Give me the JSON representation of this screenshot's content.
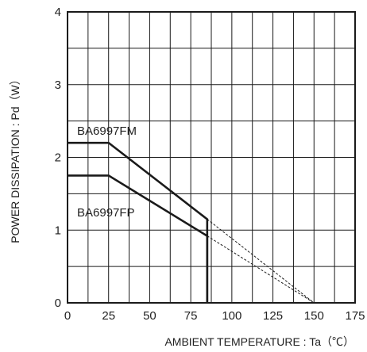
{
  "chart_data": {
    "type": "line",
    "xlabel": "AMBIENT TEMPERATURE : Ta（℃）",
    "ylabel": "POWER DISSIPATION : Pd（W）",
    "xlim": [
      0,
      175
    ],
    "ylim": [
      0,
      4
    ],
    "x_ticks": [
      "0",
      "25",
      "50",
      "75",
      "100",
      "125",
      "150",
      "175"
    ],
    "y_ticks": [
      "0",
      "1",
      "2",
      "3",
      "4"
    ],
    "grid": "on",
    "series": [
      {
        "name": "BA6997FM",
        "x": [
          0,
          25,
          85,
          85
        ],
        "y": [
          2.2,
          2.2,
          1.15,
          0
        ],
        "extrapolation": {
          "x": [
            85,
            150
          ],
          "y": [
            1.15,
            0
          ],
          "style": "dashed"
        }
      },
      {
        "name": "BA6997FP",
        "x": [
          0,
          25,
          85,
          85
        ],
        "y": [
          1.75,
          1.75,
          0.92,
          0
        ],
        "extrapolation": {
          "x": [
            85,
            150
          ],
          "y": [
            0.92,
            0
          ],
          "style": "dashed"
        }
      }
    ],
    "colors": {
      "line": "#1a1a1a",
      "grid": "#1a1a1a"
    }
  }
}
